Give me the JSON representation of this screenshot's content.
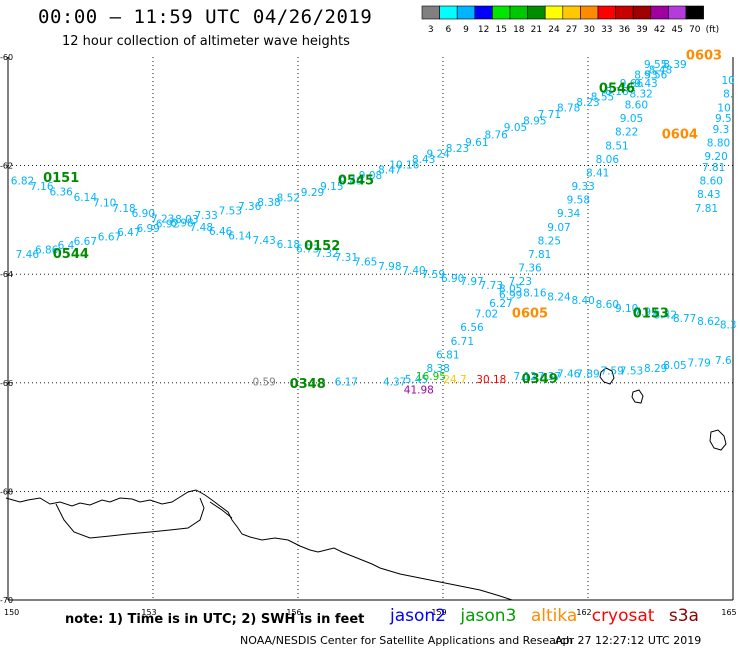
{
  "header": {
    "title": "00:00 – 11:59 UTC 04/26/2019",
    "subtitle": "12 hour collection of altimeter wave heights"
  },
  "legend": {
    "unit": "(ft)",
    "bins": [
      {
        "label": "3",
        "color": "#808080"
      },
      {
        "label": "6",
        "color": "#00ffff"
      },
      {
        "label": "9",
        "color": "#00b4ff"
      },
      {
        "label": "12",
        "color": "#0000ff"
      },
      {
        "label": "15",
        "color": "#00e600"
      },
      {
        "label": "18",
        "color": "#00c800"
      },
      {
        "label": "21",
        "color": "#008c00"
      },
      {
        "label": "24",
        "color": "#ffff00"
      },
      {
        "label": "27",
        "color": "#ffc800"
      },
      {
        "label": "30",
        "color": "#ff8c00"
      },
      {
        "label": "33",
        "color": "#ff0000"
      },
      {
        "label": "36",
        "color": "#c80000"
      },
      {
        "label": "39",
        "color": "#a00000"
      },
      {
        "label": "42",
        "color": "#a000a0"
      },
      {
        "label": "45",
        "color": "#b43cdc"
      },
      {
        "label": "70",
        "color": "#000000"
      }
    ]
  },
  "axes": {
    "lat_labels": [
      "-60",
      "-62",
      "-64",
      "-66",
      "-68",
      "-70"
    ],
    "lon_labels": [
      "150",
      "153",
      "156",
      "159",
      "162",
      "165"
    ]
  },
  "pass_times": [
    {
      "text": "0151",
      "color": "#008c00",
      "lon": 151.1,
      "lat": -62.3
    },
    {
      "text": "0544",
      "color": "#008c00",
      "lon": 151.3,
      "lat": -63.7
    },
    {
      "text": "0545",
      "color": "#008c00",
      "lon": 157.2,
      "lat": -62.35
    },
    {
      "text": "0152",
      "color": "#008c00",
      "lon": 156.5,
      "lat": -63.55
    },
    {
      "text": "0348",
      "color": "#008c00",
      "lon": 156.2,
      "lat": -66.1
    },
    {
      "text": "0349",
      "color": "#008c00",
      "lon": 161.0,
      "lat": -66.0
    },
    {
      "text": "0153",
      "color": "#008c00",
      "lon": 163.3,
      "lat": -64.8
    },
    {
      "text": "0546",
      "color": "#008c00",
      "lon": 162.6,
      "lat": -60.65
    },
    {
      "text": "0605",
      "color": "#ff8c00",
      "lon": 160.8,
      "lat": -64.8
    },
    {
      "text": "0604",
      "color": "#ff8c00",
      "lon": 163.9,
      "lat": -61.5
    },
    {
      "text": "0603",
      "color": "#ff8c00",
      "lon": 164.4,
      "lat": -60.05
    }
  ],
  "tracks": [
    {
      "name": "jason3 0151",
      "color": "#00b4ff",
      "points": [
        {
          "lon": 150.3,
          "lat": -62.35,
          "v": "6.82"
        },
        {
          "lon": 150.7,
          "lat": -62.45,
          "v": "7.16"
        },
        {
          "lon": 151.1,
          "lat": -62.55,
          "v": "6.36"
        },
        {
          "lon": 151.6,
          "lat": -62.65,
          "v": "6.14"
        },
        {
          "lon": 152.0,
          "lat": -62.75,
          "v": "7.10"
        },
        {
          "lon": 152.4,
          "lat": -62.85,
          "v": "7.18"
        },
        {
          "lon": 152.8,
          "lat": -62.95,
          "v": "6.90"
        },
        {
          "lon": 153.2,
          "lat": -63.05,
          "v": "7.23"
        },
        {
          "lon": 153.6,
          "lat": -63.12,
          "v": "6.98"
        },
        {
          "lon": 154.0,
          "lat": -63.2,
          "v": "7.48"
        },
        {
          "lon": 154.4,
          "lat": -63.28,
          "v": "6.46"
        },
        {
          "lon": 154.8,
          "lat": -63.36,
          "v": "6.14"
        },
        {
          "lon": 155.3,
          "lat": -63.44,
          "v": "7.43"
        },
        {
          "lon": 155.8,
          "lat": -63.52,
          "v": "6.18"
        },
        {
          "lon": 156.2,
          "lat": -63.6,
          "v": "6.73"
        },
        {
          "lon": 156.6,
          "lat": -63.68,
          "v": "7.32"
        },
        {
          "lon": 157.0,
          "lat": -63.76,
          "v": "7.31"
        },
        {
          "lon": 157.4,
          "lat": -63.84,
          "v": "7.65"
        },
        {
          "lon": 157.9,
          "lat": -63.92,
          "v": "7.98"
        },
        {
          "lon": 158.4,
          "lat": -64.0,
          "v": "7.40"
        },
        {
          "lon": 158.8,
          "lat": -64.07,
          "v": "7.59"
        },
        {
          "lon": 159.2,
          "lat": -64.14,
          "v": "6.90"
        },
        {
          "lon": 159.6,
          "lat": -64.2,
          "v": "7.97"
        },
        {
          "lon": 160.0,
          "lat": -64.27,
          "v": "7.73"
        },
        {
          "lon": 160.4,
          "lat": -64.34,
          "v": "8.05"
        },
        {
          "lon": 160.9,
          "lat": -64.41,
          "v": "8.16"
        },
        {
          "lon": 161.4,
          "lat": -64.48,
          "v": "8.24"
        },
        {
          "lon": 161.9,
          "lat": -64.55,
          "v": "8.40"
        },
        {
          "lon": 162.4,
          "lat": -64.62,
          "v": "8.60"
        },
        {
          "lon": 162.8,
          "lat": -64.7,
          "v": "9.10"
        },
        {
          "lon": 163.2,
          "lat": -64.76,
          "v": "7.97"
        },
        {
          "lon": 163.6,
          "lat": -64.82,
          "v": "8.42"
        },
        {
          "lon": 164.0,
          "lat": -64.88,
          "v": "8.77"
        },
        {
          "lon": 164.5,
          "lat": -64.94,
          "v": "8.62"
        },
        {
          "lon": 164.9,
          "lat": -65.0,
          "v": "8.3"
        }
      ]
    },
    {
      "name": "jason3 0544",
      "color": "#00b4ff",
      "points": [
        {
          "lon": 150.4,
          "lat": -63.7,
          "v": "7.46"
        },
        {
          "lon": 150.8,
          "lat": -63.62,
          "v": "6.86"
        },
        {
          "lon": 151.2,
          "lat": -63.54,
          "v": "6.4"
        },
        {
          "lon": 151.6,
          "lat": -63.46,
          "v": "6.67"
        },
        {
          "lon": 152.1,
          "lat": -63.38,
          "v": "6.67"
        },
        {
          "lon": 152.5,
          "lat": -63.3,
          "v": "6.47"
        },
        {
          "lon": 152.9,
          "lat": -63.22,
          "v": "6.99"
        },
        {
          "lon": 153.3,
          "lat": -63.14,
          "v": "6.92"
        },
        {
          "lon": 153.7,
          "lat": -63.06,
          "v": "8.03"
        },
        {
          "lon": 154.1,
          "lat": -62.98,
          "v": "7.33"
        },
        {
          "lon": 154.6,
          "lat": -62.9,
          "v": "7.53"
        },
        {
          "lon": 155.0,
          "lat": -62.82,
          "v": "7.36"
        },
        {
          "lon": 155.4,
          "lat": -62.74,
          "v": "8.38"
        },
        {
          "lon": 155.8,
          "lat": -62.66,
          "v": "8.52"
        },
        {
          "lon": 156.3,
          "lat": -62.56,
          "v": "9.29"
        },
        {
          "lon": 156.7,
          "lat": -62.45,
          "v": "9.15"
        },
        {
          "lon": 157.1,
          "lat": -62.35,
          "v": "9.49"
        },
        {
          "lon": 157.5,
          "lat": -62.25,
          "v": "9.08"
        },
        {
          "lon": 157.9,
          "lat": -62.15,
          "v": "8.47"
        },
        {
          "lon": 158.2,
          "lat": -62.05,
          "v": "10.16"
        },
        {
          "lon": 158.6,
          "lat": -61.95,
          "v": "8.43"
        },
        {
          "lon": 158.9,
          "lat": -61.85,
          "v": "9.24"
        },
        {
          "lon": 159.3,
          "lat": -61.75,
          "v": "8.23"
        },
        {
          "lon": 159.7,
          "lat": -61.64,
          "v": "9.61"
        },
        {
          "lon": 160.1,
          "lat": -61.5,
          "v": "8.76"
        },
        {
          "lon": 160.5,
          "lat": -61.36,
          "v": "9.05"
        },
        {
          "lon": 160.9,
          "lat": -61.24,
          "v": "8.95"
        },
        {
          "lon": 161.2,
          "lat": -61.12,
          "v": "7.71"
        },
        {
          "lon": 161.6,
          "lat": -61.0,
          "v": "8.78"
        },
        {
          "lon": 162.0,
          "lat": -60.9,
          "v": "8.23"
        },
        {
          "lon": 162.3,
          "lat": -60.8,
          "v": "8.55"
        },
        {
          "lon": 162.6,
          "lat": -60.7,
          "v": "8.18"
        },
        {
          "lon": 162.9,
          "lat": -60.55,
          "v": "9.66"
        },
        {
          "lon": 163.2,
          "lat": -60.4,
          "v": "8.53"
        },
        {
          "lon": 163.5,
          "lat": -60.3,
          "v": "8.48"
        },
        {
          "lon": 163.8,
          "lat": -60.2,
          "v": "8.39"
        }
      ]
    },
    {
      "name": "jason3 0545",
      "color": "#00b4ff",
      "points": [
        {
          "lon": 163.4,
          "lat": -60.2,
          "v": "9.55"
        },
        {
          "lon": 163.4,
          "lat": -60.4,
          "v": "9.56"
        },
        {
          "lon": 163.2,
          "lat": -60.55,
          "v": "9.43"
        },
        {
          "lon": 163.1,
          "lat": -60.75,
          "v": "8.32"
        },
        {
          "lon": 163.0,
          "lat": -60.95,
          "v": "8.60"
        },
        {
          "lon": 162.9,
          "lat": -61.2,
          "v": "9.05"
        },
        {
          "lon": 162.8,
          "lat": -61.45,
          "v": "8.22"
        },
        {
          "lon": 162.6,
          "lat": -61.7,
          "v": "8.51"
        },
        {
          "lon": 162.4,
          "lat": -61.95,
          "v": "8.06"
        },
        {
          "lon": 162.2,
          "lat": -62.2,
          "v": "8.41"
        },
        {
          "lon": 161.9,
          "lat": -62.45,
          "v": "9.33"
        },
        {
          "lon": 161.8,
          "lat": -62.7,
          "v": "9.58"
        },
        {
          "lon": 161.6,
          "lat": -62.95,
          "v": "9.34"
        },
        {
          "lon": 161.4,
          "lat": -63.2,
          "v": "9.07"
        },
        {
          "lon": 161.2,
          "lat": -63.45,
          "v": "8.25"
        },
        {
          "lon": 161.0,
          "lat": -63.7,
          "v": "7.81"
        },
        {
          "lon": 160.8,
          "lat": -63.95,
          "v": "7.36"
        },
        {
          "lon": 160.6,
          "lat": -64.2,
          "v": "7.23"
        },
        {
          "lon": 160.4,
          "lat": -64.45,
          "v": "6.99"
        },
        {
          "lon": 160.2,
          "lat": -64.6,
          "v": "6.27"
        },
        {
          "lon": 159.9,
          "lat": -64.8,
          "v": "7.02"
        },
        {
          "lon": 159.6,
          "lat": -65.05,
          "v": "6.56"
        },
        {
          "lon": 159.4,
          "lat": -65.3,
          "v": "6.71"
        },
        {
          "lon": 159.1,
          "lat": -65.55,
          "v": "6.81"
        },
        {
          "lon": 158.9,
          "lat": -65.8,
          "v": "8.38"
        }
      ]
    },
    {
      "name": "jason3 0604",
      "color": "#00b4ff",
      "points": [
        {
          "lon": 164.9,
          "lat": -60.5,
          "v": "10"
        },
        {
          "lon": 164.9,
          "lat": -60.75,
          "v": "8."
        },
        {
          "lon": 164.85,
          "lat": -61.0,
          "v": "10."
        },
        {
          "lon": 164.8,
          "lat": -61.2,
          "v": "9.5"
        },
        {
          "lon": 164.75,
          "lat": -61.4,
          "v": "9.3"
        },
        {
          "lon": 164.7,
          "lat": -61.65,
          "v": "8.80"
        },
        {
          "lon": 164.65,
          "lat": -61.9,
          "v": "9.20"
        },
        {
          "lon": 164.6,
          "lat": -62.1,
          "v": "7.81"
        },
        {
          "lon": 164.55,
          "lat": -62.35,
          "v": "8.60"
        },
        {
          "lon": 164.5,
          "lat": -62.6,
          "v": "8.43"
        },
        {
          "lon": 164.45,
          "lat": -62.85,
          "v": "7.81"
        }
      ]
    },
    {
      "name": "jason3 0348",
      "color": "#00b4ff",
      "points": [
        {
          "lon": 157.0,
          "lat": -66.05,
          "v": "6.17"
        },
        {
          "lon": 158.0,
          "lat": -66.05,
          "v": "4.37"
        },
        {
          "lon": 158.45,
          "lat": -66.0,
          "v": "5.45"
        },
        {
          "lon": 160.7,
          "lat": -65.95,
          "v": "7.12"
        },
        {
          "lon": 161.2,
          "lat": -65.95,
          "v": "7.37"
        },
        {
          "lon": 161.6,
          "lat": -65.9,
          "v": "7.46"
        },
        {
          "lon": 162.0,
          "lat": -65.9,
          "v": "7.89"
        },
        {
          "lon": 162.5,
          "lat": -65.85,
          "v": "7.59"
        },
        {
          "lon": 162.9,
          "lat": -65.85,
          "v": "7.53"
        },
        {
          "lon": 163.4,
          "lat": -65.8,
          "v": "8.29"
        },
        {
          "lon": 163.8,
          "lat": -65.75,
          "v": "8.05"
        },
        {
          "lon": 164.3,
          "lat": -65.7,
          "v": "7.79"
        },
        {
          "lon": 164.8,
          "lat": -65.65,
          "v": "7.6"
        }
      ]
    }
  ],
  "singles": [
    {
      "lon": 155.3,
      "lat": -66.05,
      "v": "0.59",
      "color": "#808080"
    },
    {
      "lon": 158.75,
      "lat": -65.95,
      "v": "16.95",
      "color": "#00c800"
    },
    {
      "lon": 159.25,
      "lat": -66.0,
      "v": "24.7",
      "color": "#ffc800"
    },
    {
      "lon": 160.0,
      "lat": -66.0,
      "v": "30.18",
      "color": "#ff0000"
    },
    {
      "lon": 158.5,
      "lat": -66.2,
      "v": "41.98",
      "color": "#a000a0"
    }
  ],
  "footer": {
    "note": "note:  1) Time is in UTC;  2) SWH is in feet",
    "satellites": [
      {
        "name": "jason2",
        "color": "#0000ff"
      },
      {
        "name": "jason3",
        "color": "#00a000"
      },
      {
        "name": "altika",
        "color": "#ff8c00"
      },
      {
        "name": "cryosat",
        "color": "#ff0000"
      },
      {
        "name": "s3a",
        "color": "#8b0000"
      }
    ],
    "credit": "NOAA/NESDIS Center for Satellite Applications and Research",
    "timestamp": "Apr 27 12:27:12 UTC 2019"
  }
}
